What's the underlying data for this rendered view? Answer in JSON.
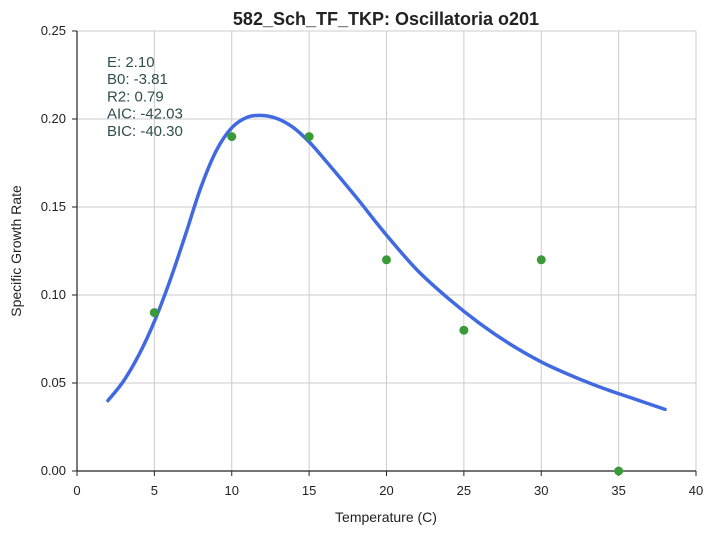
{
  "chart_data": {
    "type": "scatter",
    "title": "582_Sch_TF_TKP: Oscillatoria o201",
    "xlabel": "Temperature (C)",
    "ylabel": "Specific Growth Rate",
    "xlim": [
      0,
      40
    ],
    "ylim": [
      0,
      0.25
    ],
    "xticks": [
      0,
      5,
      10,
      15,
      20,
      25,
      30,
      35,
      40
    ],
    "xtick_labels": [
      "0",
      "5",
      "10",
      "15",
      "20",
      "25",
      "30",
      "35",
      "40"
    ],
    "yticks": [
      0,
      0.05,
      0.1,
      0.15,
      0.2,
      0.25
    ],
    "ytick_labels": [
      "0.00",
      "0.05",
      "0.10",
      "0.15",
      "0.20",
      "0.25"
    ],
    "grid": true,
    "series": [
      {
        "kind": "points",
        "color": "#3a9a3a",
        "x": [
          5,
          10,
          15,
          20,
          25,
          30,
          35
        ],
        "y": [
          0.09,
          0.19,
          0.19,
          0.12,
          0.08,
          0.12,
          0.0
        ]
      },
      {
        "kind": "line",
        "color": "#4169e1",
        "x": [
          2,
          3,
          4,
          5,
          6,
          7,
          8,
          9,
          10,
          11,
          12,
          13,
          14,
          15,
          16,
          18,
          20,
          22,
          24,
          26,
          28,
          30,
          32,
          34,
          36,
          38
        ],
        "y": [
          0.04,
          0.051,
          0.066,
          0.085,
          0.108,
          0.134,
          0.161,
          0.182,
          0.195,
          0.201,
          0.202,
          0.2,
          0.195,
          0.187,
          0.177,
          0.156,
          0.134,
          0.114,
          0.098,
          0.084,
          0.072,
          0.062,
          0.054,
          0.047,
          0.041,
          0.035
        ]
      }
    ],
    "annotation_lines": [
      "E:  2.10",
      "B0:  -3.81",
      "R2:  0.79",
      "AIC: -42.03",
      "BIC: -40.30"
    ],
    "annotation_position": "top-left"
  }
}
